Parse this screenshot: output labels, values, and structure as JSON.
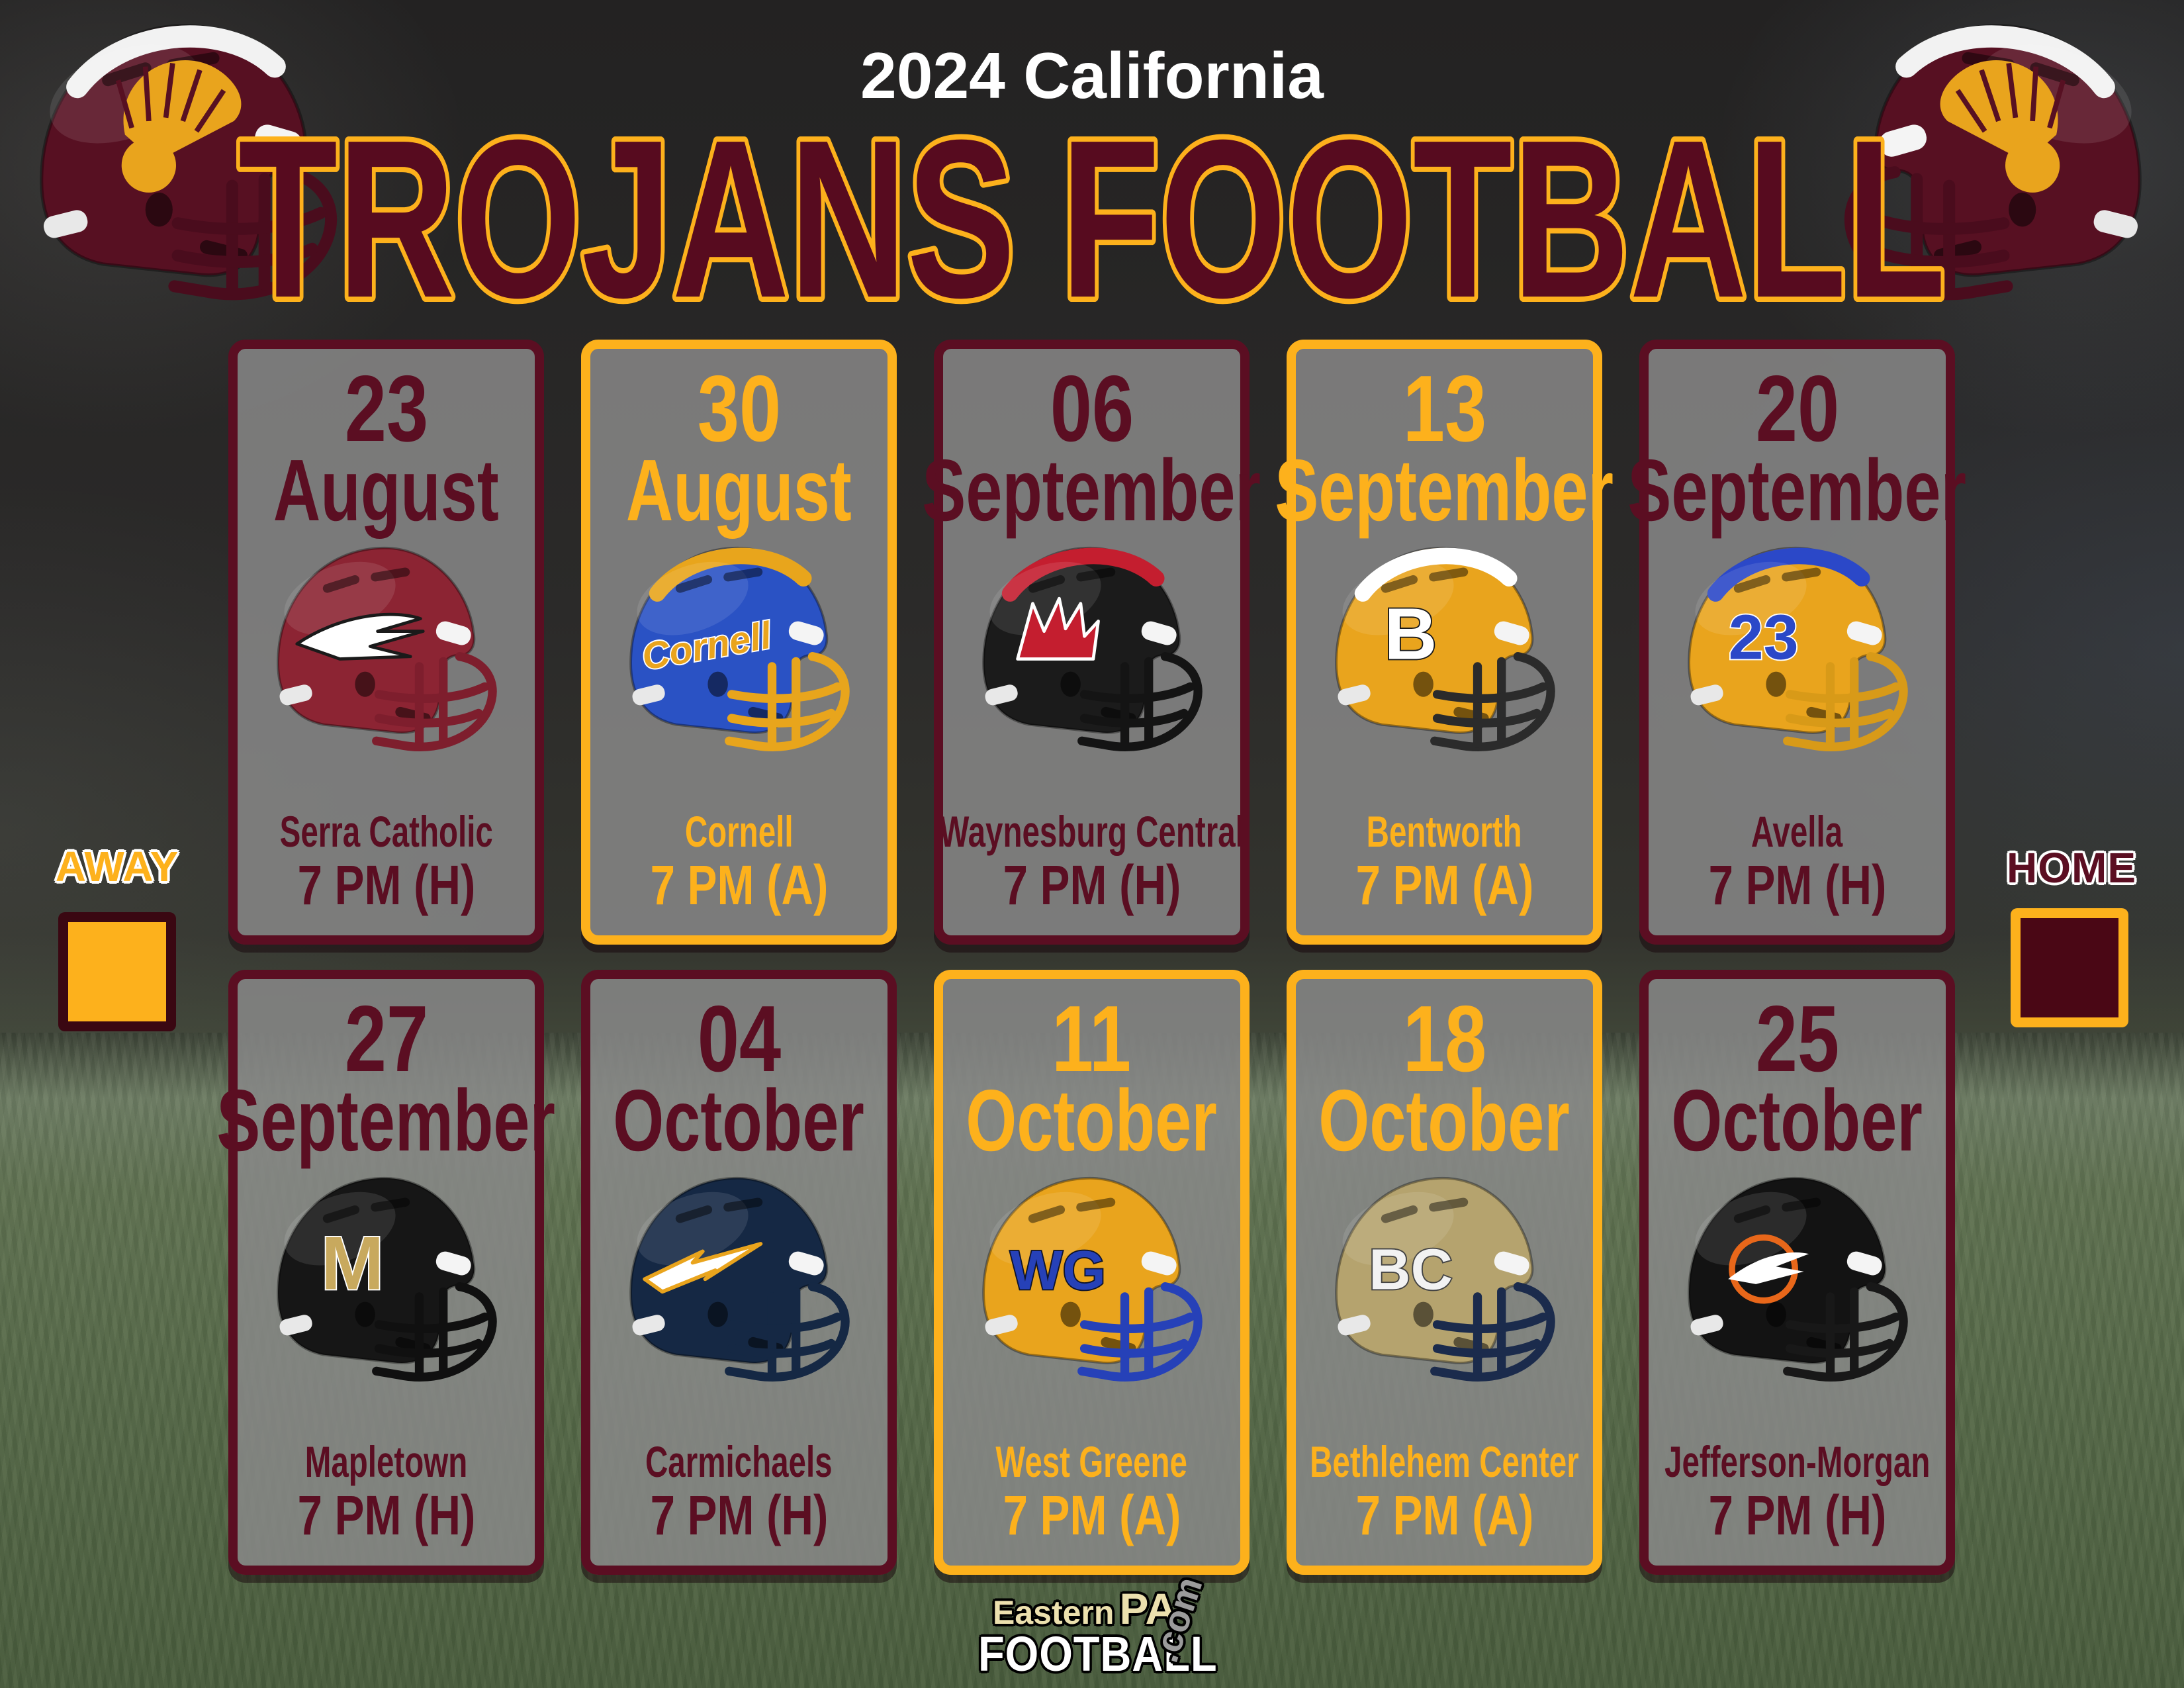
{
  "header": {
    "season_line": "2024 California",
    "main_title": "TROJANS FOOTBALL"
  },
  "legend": {
    "away_label": "AWAY",
    "home_label": "HOME"
  },
  "footer_logo": {
    "word1": "Eastern",
    "word2": "PA",
    "word3": "FOOTBALL",
    "word4": ".com"
  },
  "colors": {
    "maroon": "#5B0E22",
    "gold": "#FDB11C",
    "title_fill": "#570B1F",
    "title_stroke": "#FDB11C",
    "season_color": "#FFFFFF",
    "card_bg": "rgba(136,136,136,0.85)"
  },
  "team_helmet": {
    "name": "california-trojans",
    "shell": "#571022",
    "mask": "#4A0C1D",
    "stripe": "#F2F2F2",
    "emblem": {
      "type": "trojan",
      "color": "#E9A41D"
    }
  },
  "games": [
    {
      "day": "23",
      "month": "August",
      "opponent": "Serra Catholic",
      "time": "7 PM (H)",
      "venue": "home",
      "helmet": {
        "name": "serra-catholic",
        "shell": "#8C2433",
        "mask": "#7E1E2D",
        "stripe": null,
        "emblem": {
          "type": "wing",
          "color": "#FFFFFF"
        }
      }
    },
    {
      "day": "30",
      "month": "August",
      "opponent": "Cornell",
      "time": "7 PM (A)",
      "venue": "away",
      "helmet": {
        "name": "cornell",
        "shell": "#2A52C4",
        "mask": "#E8A51C",
        "stripe": "#E8A51C",
        "emblem": {
          "type": "text",
          "text": "Cornell",
          "color": "#E9A41D",
          "stroke": "#FFFFFF",
          "size": 30,
          "italic": true,
          "rotate": -10
        }
      }
    },
    {
      "day": "06",
      "month": "September",
      "opponent": "Waynesburg Central",
      "time": "7 PM (H)",
      "venue": "home",
      "helmet": {
        "name": "waynesburg-central",
        "shell": "#1B1B1B",
        "mask": "#141414",
        "stripe": "#C41E2F",
        "emblem": {
          "type": "head",
          "color": "#C41E2F"
        }
      }
    },
    {
      "day": "13",
      "month": "September",
      "opponent": "Bentworth",
      "time": "7 PM (A)",
      "venue": "away",
      "helmet": {
        "name": "bentworth",
        "shell": "#E9A41D",
        "mask": "#2B2B2B",
        "stripe": "#FFFFFF",
        "emblem": {
          "type": "text",
          "text": "B",
          "color": "#FFFFFF",
          "stroke": "#1A1A1A",
          "size": 58
        }
      }
    },
    {
      "day": "20",
      "month": "September",
      "opponent": "Avella",
      "time": "7 PM (H)",
      "venue": "home",
      "helmet": {
        "name": "avella",
        "shell": "#E9A41D",
        "mask": "#D89A18",
        "stripe": "#2B48C8",
        "emblem": {
          "type": "text",
          "text": "23",
          "color": "#2B48C8",
          "stroke": "#FFFFFF",
          "size": 50
        }
      }
    },
    {
      "day": "27",
      "month": "September",
      "opponent": "Mapletown",
      "time": "7 PM (H)",
      "venue": "home",
      "helmet": {
        "name": "mapletown",
        "shell": "#161616",
        "mask": "#101010",
        "stripe": null,
        "emblem": {
          "type": "text",
          "text": "M",
          "color": "#C8A95E",
          "stroke": "#FFFFFF",
          "size": 60
        }
      }
    },
    {
      "day": "04",
      "month": "October",
      "opponent": "Carmichaels",
      "time": "7 PM (H)",
      "venue": "home",
      "helmet": {
        "name": "carmichaels",
        "shell": "#152844",
        "mask": "#152844",
        "stripe": null,
        "emblem": {
          "type": "bolt",
          "color": "#FFFFFF",
          "stroke": "#E9A41D"
        }
      }
    },
    {
      "day": "11",
      "month": "October",
      "opponent": "West Greene",
      "time": "7 PM (A)",
      "venue": "away",
      "helmet": {
        "name": "west-greene",
        "shell": "#E9A41D",
        "mask": "#2641B8",
        "stripe": null,
        "emblem": {
          "type": "text",
          "text": "WG",
          "color": "#2641B8",
          "stroke": "#10152C",
          "size": 44
        }
      }
    },
    {
      "day": "18",
      "month": "October",
      "opponent": "Bethlehem Center",
      "time": "7 PM (A)",
      "venue": "away",
      "helmet": {
        "name": "bethlehem-center",
        "shell": "#B5A36E",
        "mask": "#1B2B4C",
        "stripe": null,
        "emblem": {
          "type": "text",
          "text": "BC",
          "color": "#F2F2F2",
          "stroke": "#444444",
          "size": 46
        }
      }
    },
    {
      "day": "25",
      "month": "October",
      "opponent": "Jefferson-Morgan",
      "time": "7 PM (H)",
      "venue": "home",
      "helmet": {
        "name": "jefferson-morgan",
        "shell": "#131313",
        "mask": "#181818",
        "stripe": null,
        "emblem": {
          "type": "rocket",
          "color": "#E8671A"
        }
      }
    }
  ]
}
